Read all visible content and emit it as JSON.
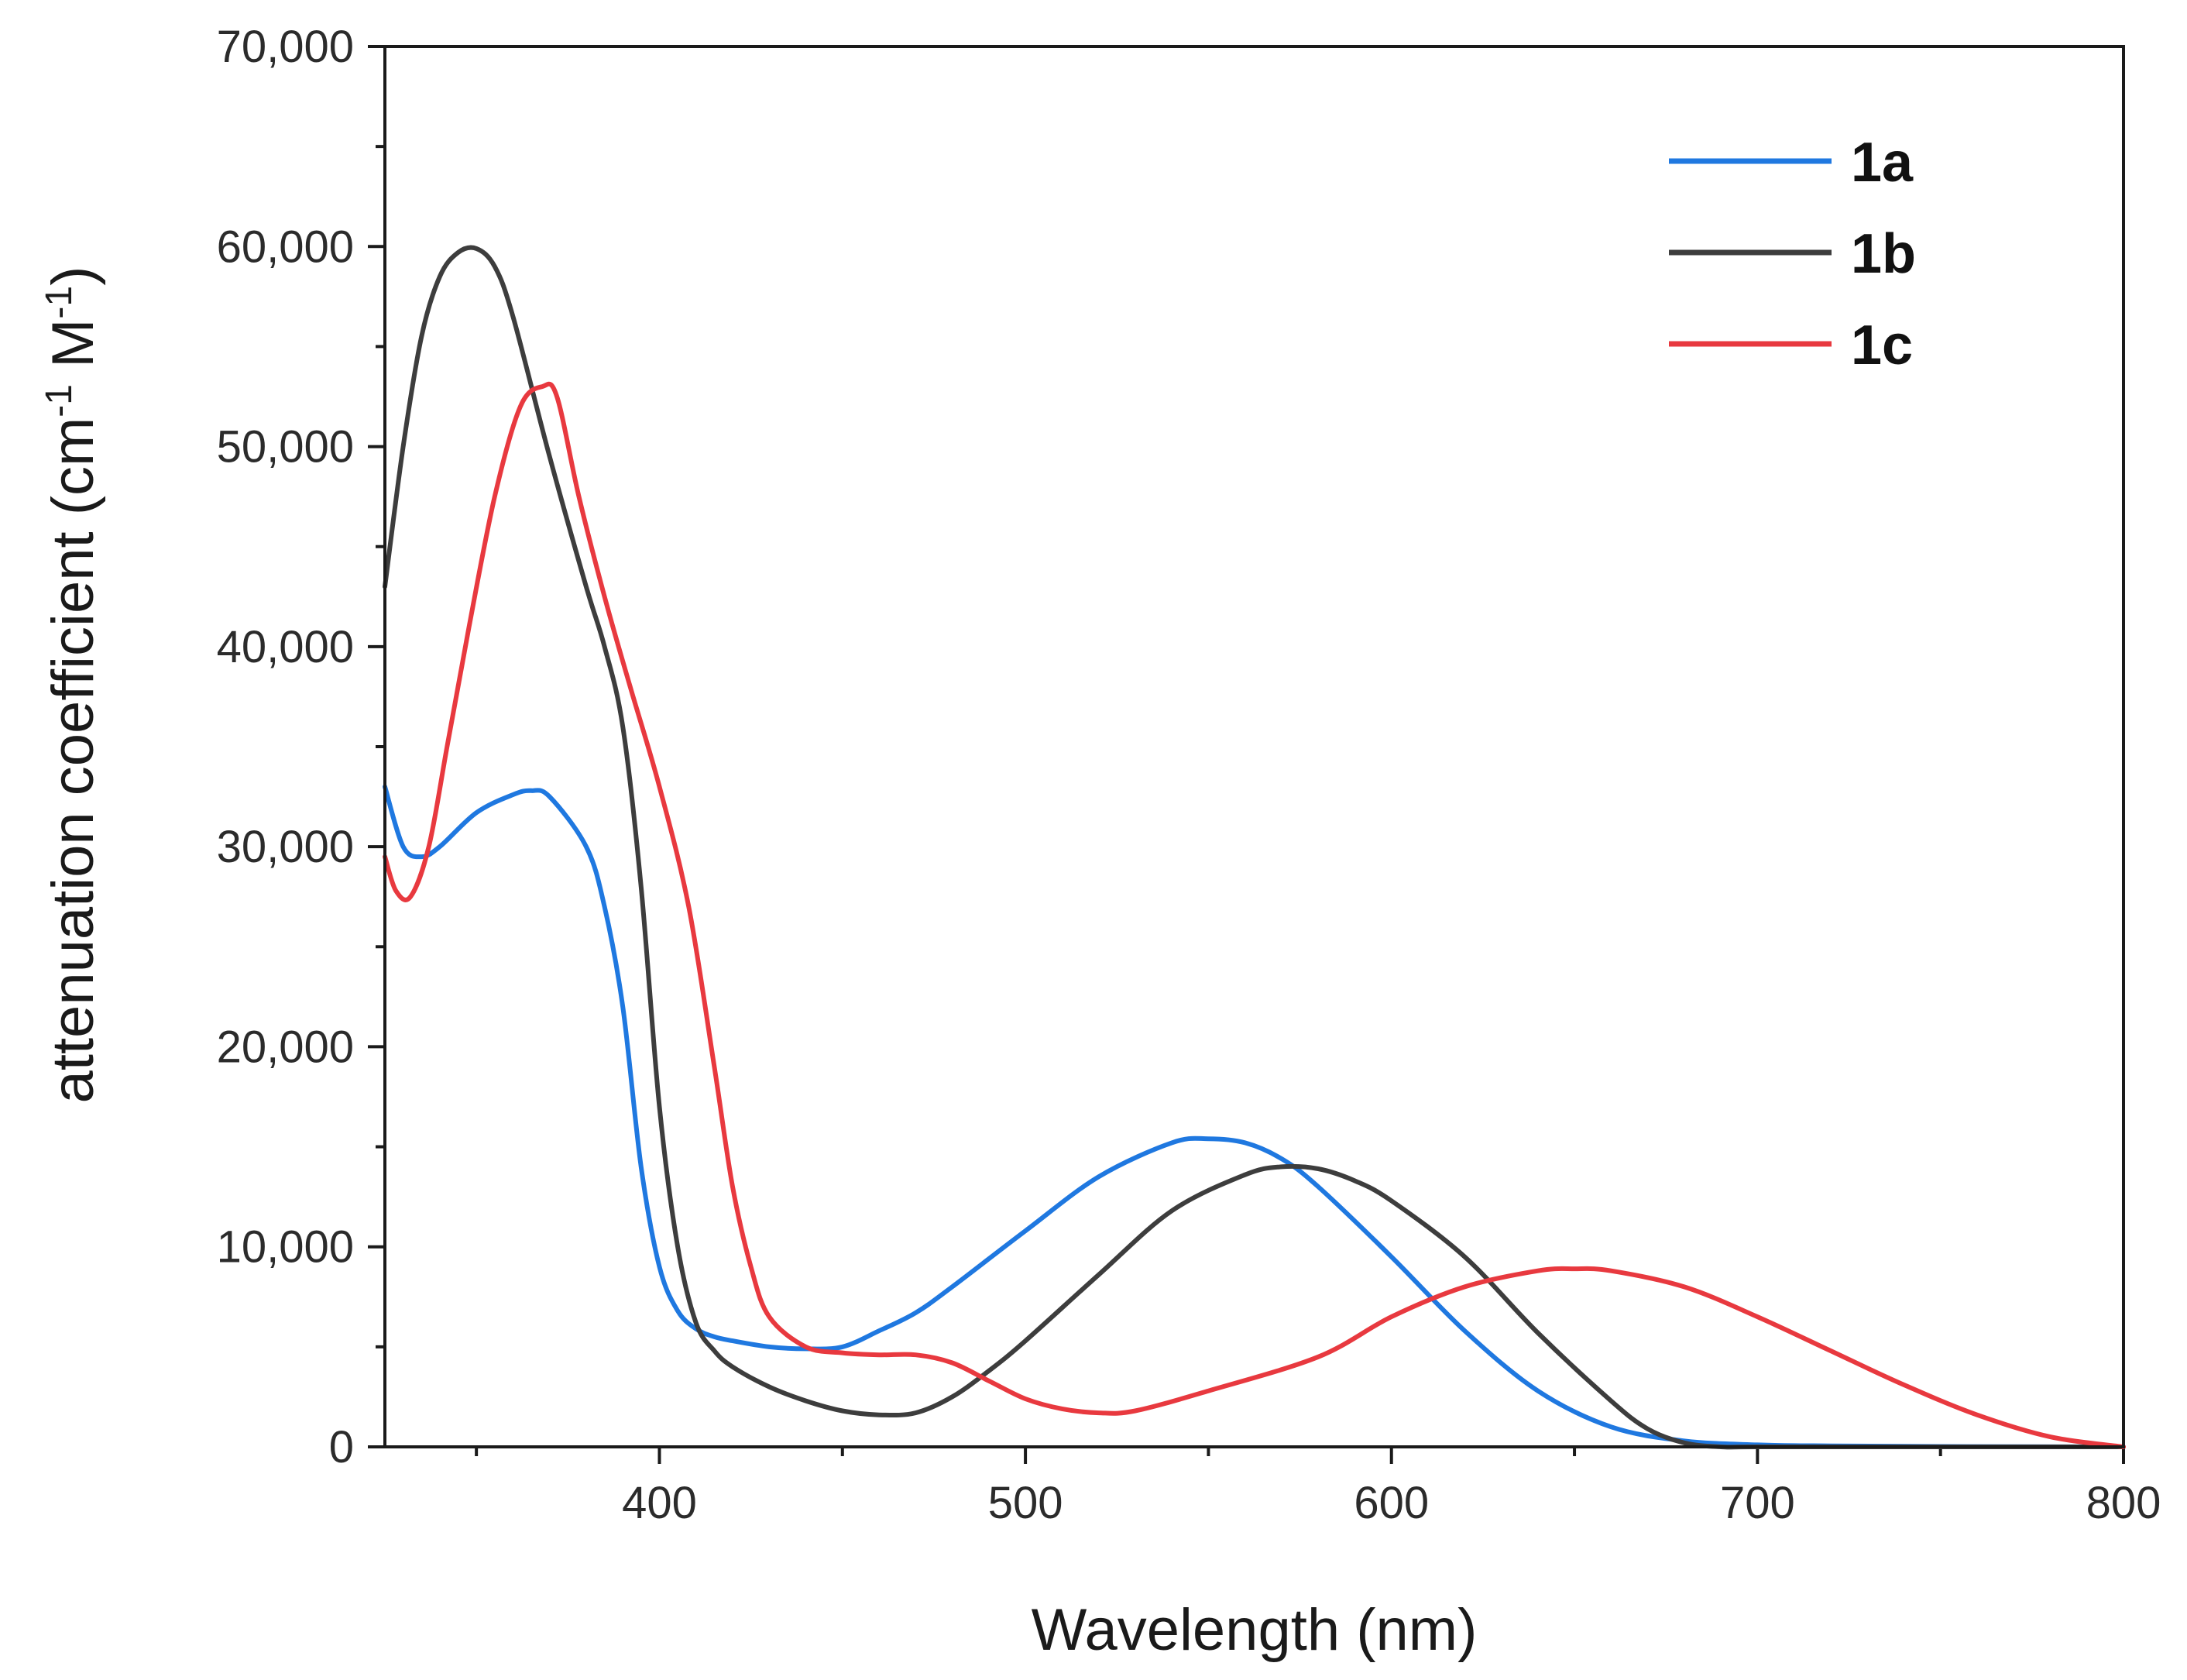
{
  "chart_data": {
    "type": "line",
    "title": "",
    "xlabel": "Wavelength (nm)",
    "ylabel_main": "attenuation coefficient (cm",
    "ylabel_sup1": "-1",
    "ylabel_mid": " M",
    "ylabel_sup2": "-1",
    "ylabel_end": ")",
    "xlim": [
      325,
      800
    ],
    "ylim": [
      0,
      70000
    ],
    "x_ticks": [
      400,
      500,
      600,
      700,
      800
    ],
    "x_tick_labels": [
      "400",
      "500",
      "600",
      "700",
      "800"
    ],
    "y_ticks": [
      0,
      10000,
      20000,
      30000,
      40000,
      50000,
      60000,
      70000
    ],
    "y_tick_labels": [
      "0",
      "10,000",
      "20,000",
      "30,000",
      "40,000",
      "50,000",
      "60,000",
      "70,000"
    ],
    "legend_position": "top-right",
    "grid": false,
    "series": [
      {
        "name": "1a",
        "color": "#1f78e0",
        "x": [
          325,
          330,
          335,
          340,
          350,
          360,
          365,
          370,
          380,
          385,
          390,
          395,
          400,
          405,
          410,
          415,
          420,
          430,
          440,
          450,
          460,
          470,
          480,
          500,
          520,
          540,
          550,
          560,
          570,
          580,
          600,
          620,
          640,
          660,
          680,
          700,
          720,
          750,
          800
        ],
        "y": [
          33000,
          30000,
          29500,
          30000,
          31700,
          32600,
          32800,
          32500,
          30000,
          27000,
          22000,
          14000,
          9000,
          6800,
          5900,
          5500,
          5300,
          5000,
          4900,
          5000,
          5800,
          6700,
          8000,
          10800,
          13500,
          15200,
          15400,
          15200,
          14400,
          13000,
          9500,
          5800,
          2800,
          1000,
          300,
          100,
          50,
          20,
          0
        ]
      },
      {
        "name": "1b",
        "color": "#3d3d3d",
        "x": [
          325,
          330,
          335,
          340,
          345,
          350,
          355,
          360,
          370,
          380,
          385,
          390,
          395,
          400,
          405,
          410,
          415,
          420,
          430,
          440,
          450,
          460,
          470,
          480,
          490,
          500,
          520,
          540,
          560,
          570,
          580,
          590,
          600,
          620,
          640,
          660,
          670,
          680,
          690,
          700,
          750,
          800
        ],
        "y": [
          43000,
          50000,
          55500,
          58500,
          59700,
          59900,
          59000,
          56500,
          49500,
          43000,
          40000,
          36000,
          28000,
          17000,
          10000,
          6200,
          4800,
          4000,
          3000,
          2300,
          1800,
          1600,
          1700,
          2500,
          3800,
          5300,
          8600,
          11800,
          13600,
          14000,
          13900,
          13300,
          12300,
          9500,
          5700,
          2300,
          900,
          200,
          0,
          0,
          0,
          0
        ]
      },
      {
        "name": "1c",
        "color": "#e8393f",
        "x": [
          325,
          328,
          332,
          337,
          342,
          348,
          355,
          362,
          368,
          372,
          378,
          385,
          392,
          400,
          408,
          415,
          420,
          425,
          430,
          440,
          450,
          460,
          470,
          480,
          490,
          500,
          510,
          520,
          530,
          550,
          580,
          600,
          620,
          640,
          650,
          660,
          680,
          700,
          720,
          740,
          760,
          780,
          800
        ],
        "y": [
          29500,
          27800,
          27500,
          30000,
          35000,
          41000,
          47500,
          52000,
          53000,
          52500,
          47500,
          42500,
          38000,
          33000,
          27000,
          19000,
          13000,
          9000,
          6500,
          5000,
          4700,
          4600,
          4600,
          4200,
          3300,
          2400,
          1900,
          1700,
          1800,
          2800,
          4500,
          6500,
          8000,
          8800,
          8900,
          8800,
          8000,
          6500,
          4800,
          3100,
          1600,
          500,
          0
        ]
      }
    ]
  }
}
